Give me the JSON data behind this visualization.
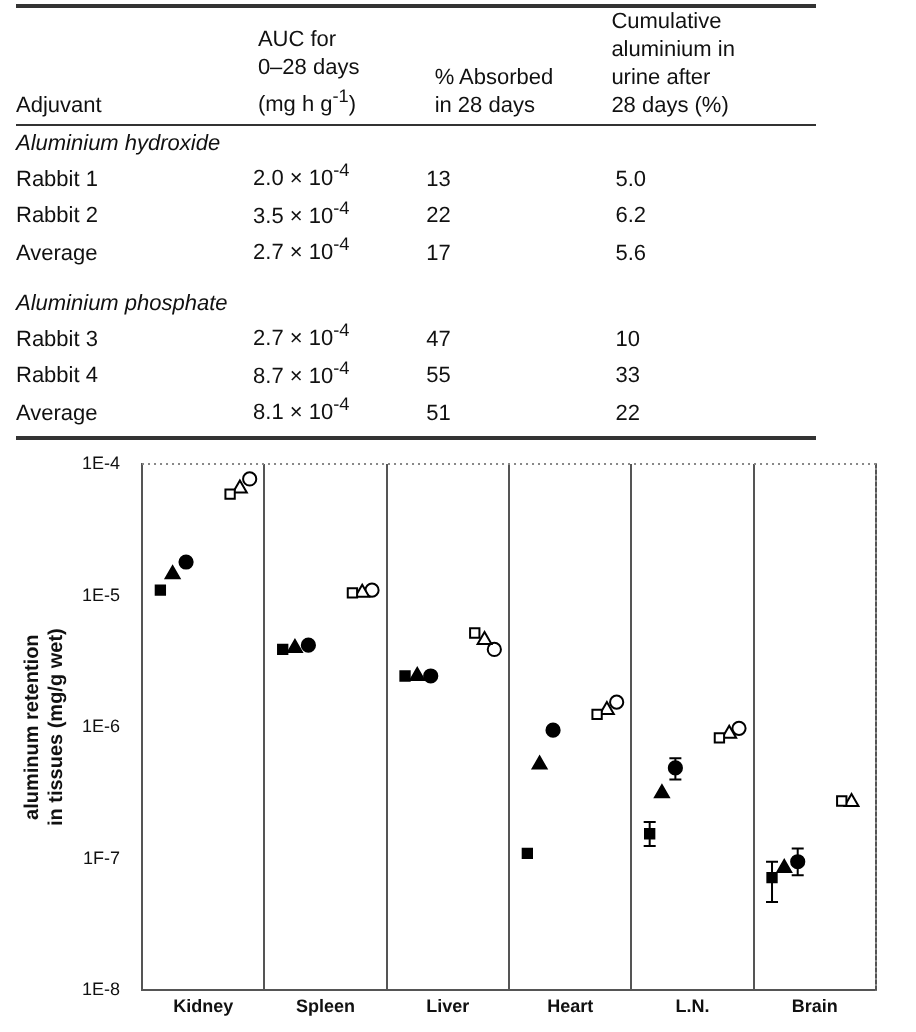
{
  "chart_data": [
    {
      "type": "other",
      "annotations": [
        "Adjuvant\tAUC for\n0–28 days\n(mg h g$^{-1}$)\t% Absorbed\nin 28 days\tCumulative\naluminium in\nurine after\n28 days (%)",
        "Aluminium hydroxide",
        "Rabbit 1\t2.0 × 10$^{-4}$\t13\t5.0",
        "Rabbit 2\t3.5 × 10$^{-4}$\t22\t6.2",
        "Average\t2.7 × 10$^{-4}$\t17\t5.6",
        "Aluminium phosphate",
        "Rabbit 3\t2.7 × 10$^{-4}$\t47\t10",
        "Rabbit 4\t8.7 × 10$^{-4}$\t55\t33",
        "Average\t8.1 × 10$^{-4}$\t51\t22"
      ]
    },
    {
      "type": "scatter",
      "ylabel": "aluminum retention\nin tissues (mg/g wet)",
      "categories": [
        "Kidney",
        "Spleen",
        "Liver",
        "Heart",
        "L.N.",
        "Brain"
      ],
      "log": "y",
      "ylim": [
        1e-08,
        0.0001
      ],
      "yticks": [
        {
          "value": 1e-08,
          "label": "1E-8"
        },
        {
          "value": 1e-07,
          "label": "1F-7"
        },
        {
          "value": 1e-06,
          "label": "1E-6"
        },
        {
          "value": 1e-05,
          "label": "1E-5"
        },
        {
          "value": 0.0001,
          "label": "1E-4"
        }
      ],
      "grid": "x",
      "legend": false,
      "series": [
        {
          "color": "#000000",
          "marker": "square",
          "values": [
            1.1e-05,
            3.9e-06,
            2.45e-06,
            1.1e-07,
            1.55e-07,
            7.2e-08
          ],
          "errors": [
            null,
            null,
            null,
            null,
            [
              1.25e-07,
              1.9e-07
            ],
            [
              4.7e-08,
              9.5e-08
            ]
          ]
        },
        {
          "color": "#000000",
          "marker": "triangle",
          "values": [
            1.45e-05,
            4e-06,
            2.45e-06,
            5.2e-07,
            3.15e-07,
            8.5e-08
          ]
        },
        {
          "color": "#000000",
          "marker": "circle",
          "values": [
            1.8e-05,
            4.2e-06,
            2.45e-06,
            9.5e-07,
            4.9e-07,
            9.5e-08
          ],
          "errors": [
            null,
            null,
            null,
            null,
            [
              4e-07,
              5.8e-07
            ],
            [
              7.5e-08,
              1.2e-07
            ]
          ]
        },
        {
          "color": "#000000",
          "marker": "square",
          "values": [
            5.9e-05,
            1.05e-05,
            5.2e-06,
            1.25e-06,
            8.3e-07,
            2.75e-07
          ]
        },
        {
          "color": "#000000",
          "marker": "triangle",
          "values": [
            6.5e-05,
            1.05e-05,
            4.6e-06,
            1.35e-06,
            8.9e-07,
            2.7e-07
          ]
        },
        {
          "color": "#000000",
          "marker": "circle",
          "values": [
            7.7e-05,
            1.1e-05,
            3.9e-06,
            1.55e-06,
            9.8e-07,
            null
          ]
        }
      ]
    }
  ]
}
